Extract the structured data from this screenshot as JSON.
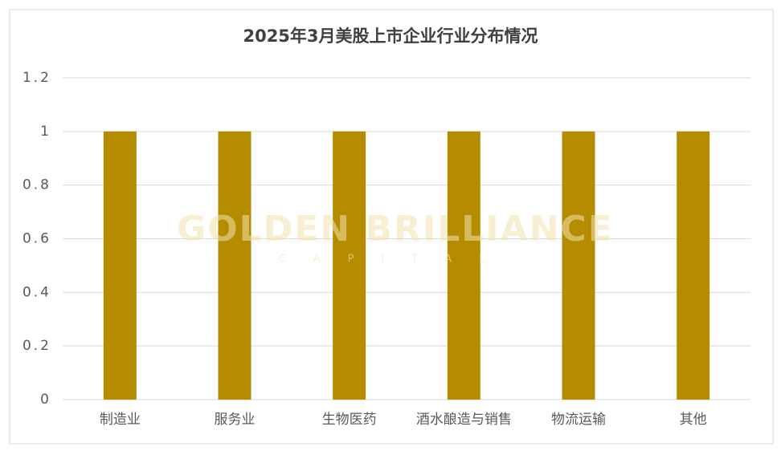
{
  "chart_data": {
    "type": "bar",
    "title": "2025年3月美股上市企业行业分布情况",
    "watermark": "GOLDEN BRILLIANCE",
    "watermark_subtitle": "CAPITAL",
    "categories": [
      "制造业",
      "服务业",
      "生物医药",
      "酒水酿造与销售",
      "物流运输",
      "其他"
    ],
    "values": [
      1,
      1,
      1,
      1,
      1,
      1
    ],
    "color": "#b58b00",
    "ylim": [
      0,
      1.2
    ],
    "yticks": [
      0,
      0.2,
      0.4,
      0.6,
      0.8,
      1,
      1.2
    ],
    "grid": true
  }
}
